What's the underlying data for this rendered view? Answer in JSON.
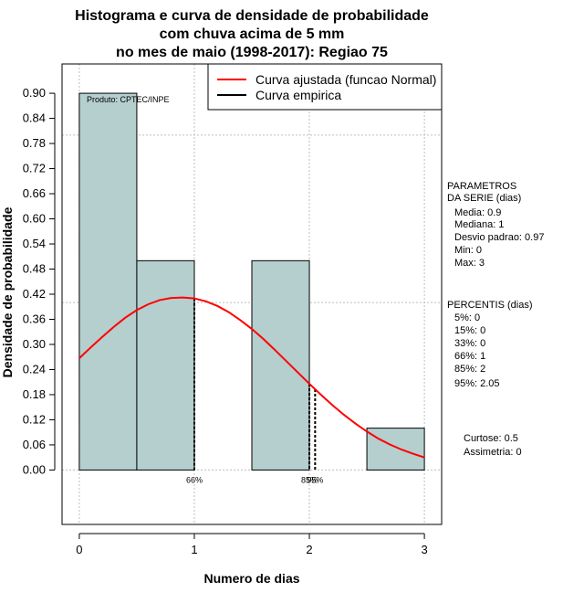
{
  "chart_data": {
    "type": "bar",
    "title_lines": [
      "Histograma e curva de densidade de probabilidade",
      "com chuva acima de 5 mm",
      "no mes de maio (1998-2017): Regiao 75"
    ],
    "xlabel": "Numero de dias",
    "ylabel": "Densidade de probabilidade",
    "xlim": [
      -0.15,
      3.15
    ],
    "ylim": [
      -0.13,
      0.97
    ],
    "x_ticks": [
      0,
      1,
      2,
      3
    ],
    "x_tick_labels": [
      "0",
      "1",
      "2",
      "3"
    ],
    "y_ticks": [
      0.0,
      0.06,
      0.12,
      0.18,
      0.24,
      0.3,
      0.36,
      0.42,
      0.48,
      0.54,
      0.6,
      0.66,
      0.72,
      0.78,
      0.84,
      0.9
    ],
    "y_tick_labels": [
      "0.00",
      "0.06",
      "0.12",
      "0.18",
      "0.24",
      "0.30",
      "0.36",
      "0.42",
      "0.48",
      "0.54",
      "0.60",
      "0.66",
      "0.72",
      "0.78",
      "0.84",
      "0.90"
    ],
    "grid": true,
    "grid_x": [
      0,
      1,
      2,
      3
    ],
    "grid_y": [
      0.0,
      0.4,
      0.8
    ],
    "bins": [
      {
        "from": 0.0,
        "to": 0.5,
        "density": 0.9
      },
      {
        "from": 0.5,
        "to": 1.0,
        "density": 0.5
      },
      {
        "from": 1.0,
        "to": 1.5,
        "density": 0.0
      },
      {
        "from": 1.5,
        "to": 2.0,
        "density": 0.5
      },
      {
        "from": 2.0,
        "to": 2.5,
        "density": 0.0
      },
      {
        "from": 2.5,
        "to": 3.0,
        "density": 0.1
      }
    ],
    "bar_color": "#b5cece",
    "fitted_curve": {
      "name": "Curva ajustada (funcao Normal)",
      "color": "#ff0000",
      "x": [
        0,
        0.1,
        0.2,
        0.3,
        0.4,
        0.5,
        0.6,
        0.7,
        0.8,
        0.9,
        1.0,
        1.1,
        1.2,
        1.3,
        1.4,
        1.5,
        1.6,
        1.7,
        1.8,
        1.9,
        2.0,
        2.1,
        2.2,
        2.3,
        2.4,
        2.5,
        2.6,
        2.7,
        2.8,
        2.9,
        3.0
      ],
      "y": [
        0.267,
        0.293,
        0.318,
        0.342,
        0.364,
        0.382,
        0.396,
        0.406,
        0.411,
        0.412,
        0.41,
        0.403,
        0.392,
        0.377,
        0.358,
        0.337,
        0.313,
        0.287,
        0.26,
        0.233,
        0.206,
        0.18,
        0.155,
        0.132,
        0.111,
        0.092,
        0.075,
        0.061,
        0.049,
        0.039,
        0.03
      ]
    },
    "empirical_curve": {
      "name": "Curva empirica",
      "color": "#000000"
    },
    "percentile_markers": [
      {
        "label": "66%",
        "x": 1.0
      },
      {
        "label": "85%",
        "x": 2.0
      },
      {
        "label": "95%",
        "x": 2.05
      }
    ],
    "legend_position": "top-right"
  },
  "product_label": "Produto: CPTEC/INPE",
  "parametros": {
    "header": [
      "PARAMETROS",
      "DA SERIE (dias)"
    ],
    "items": [
      "Media: 0.9",
      "Mediana: 1",
      "Desvio padrao: 0.97",
      "Min: 0",
      "Max: 3"
    ]
  },
  "percentis": {
    "header": "PERCENTIS (dias)",
    "items": [
      "5%: 0",
      "15%: 0",
      "33%: 0",
      "66%: 1",
      "85%: 2",
      "95%: 2.05"
    ]
  },
  "shape": {
    "items": [
      "Curtose: 0.5",
      "Assimetria: 0"
    ]
  }
}
